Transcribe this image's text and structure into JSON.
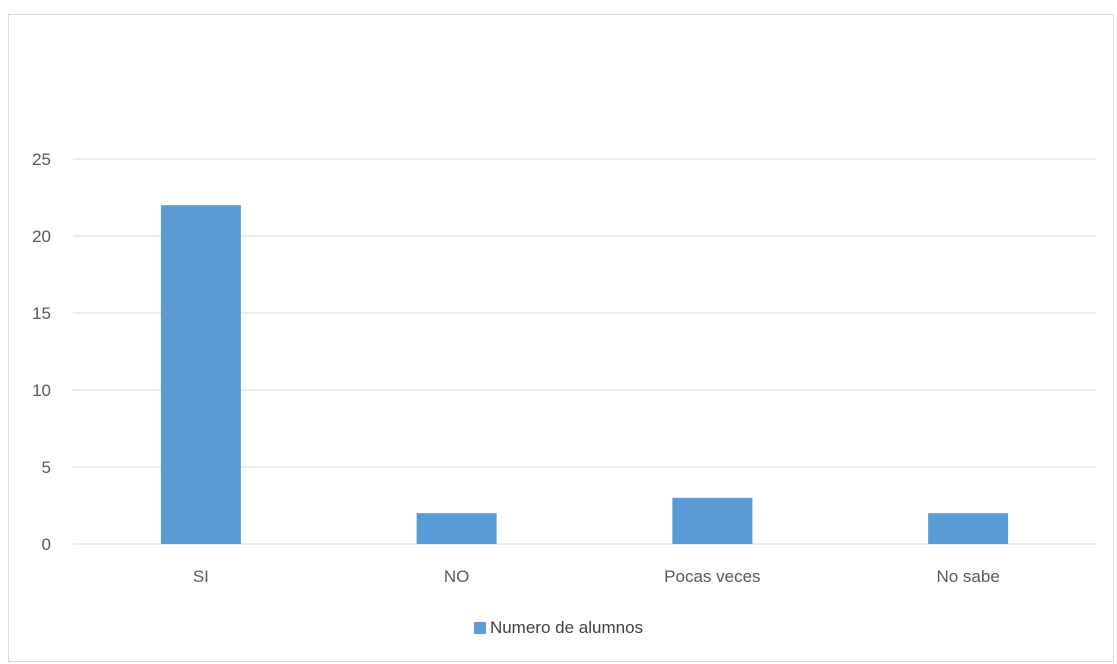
{
  "chart_data": {
    "type": "bar",
    "title": "",
    "xlabel": "",
    "ylabel": "",
    "categories": [
      "SI",
      "NO",
      "Pocas veces",
      "No sabe"
    ],
    "series": [
      {
        "name": "Numero de alumnos",
        "values": [
          22,
          2,
          3,
          2
        ]
      }
    ],
    "ylim": [
      0,
      25
    ],
    "yticks": [
      0,
      5,
      10,
      15,
      20,
      25
    ],
    "grid": true,
    "legend_position": "bottom",
    "bar_color": "#5b9bd5",
    "grid_color": "#d9d9d9"
  }
}
